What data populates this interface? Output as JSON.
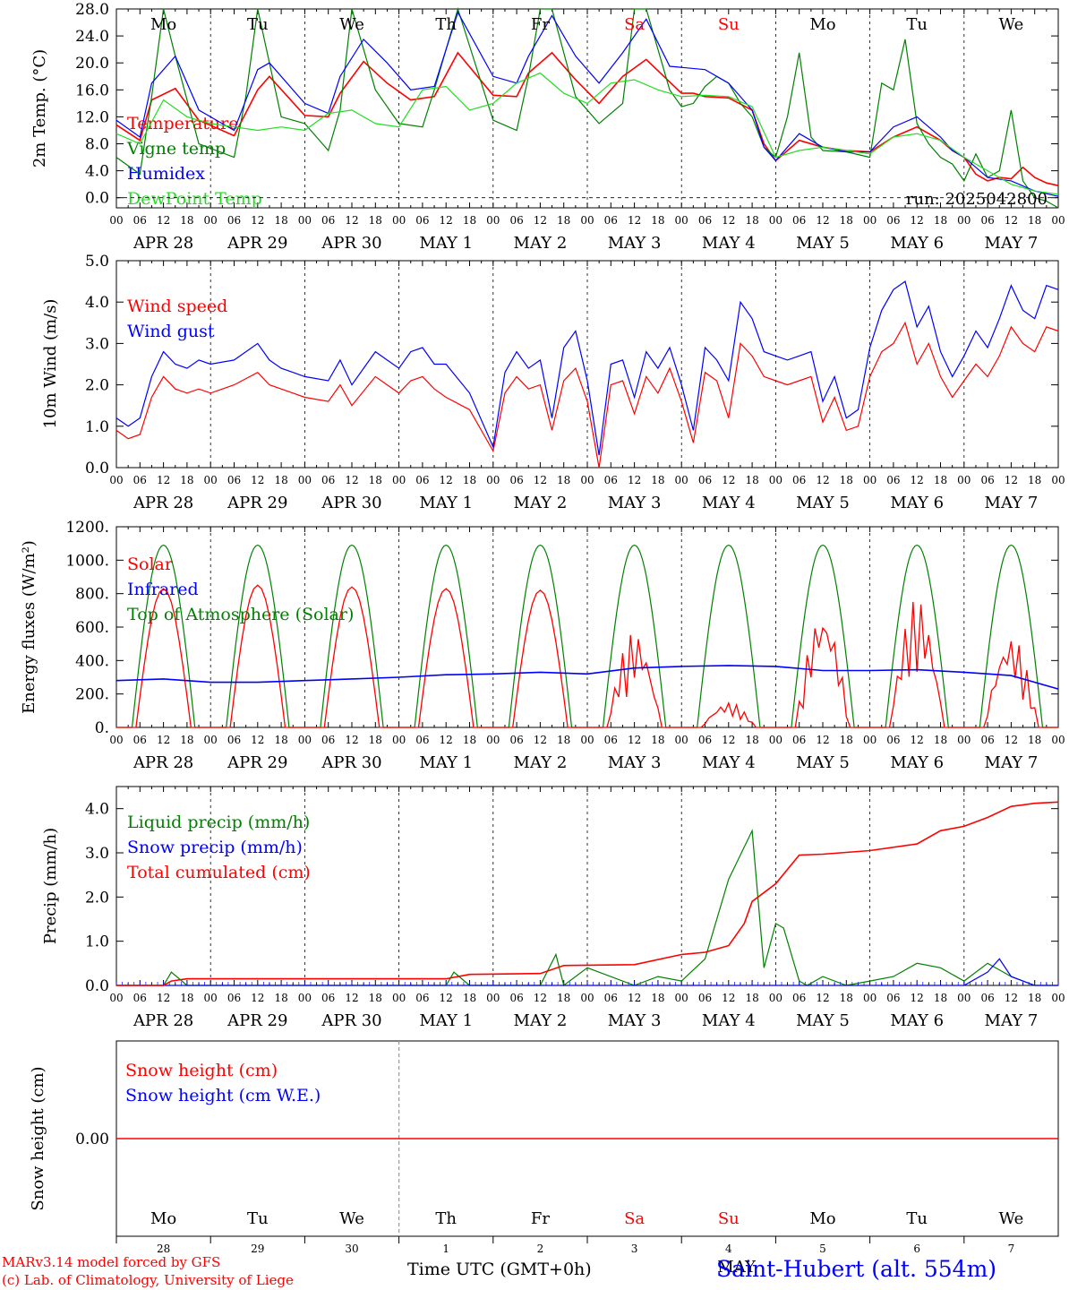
{
  "run_label": "run: 2025042800",
  "days": {
    "weekday_labels": [
      "Mo",
      "Tu",
      "We",
      "Th",
      "Fr",
      "Sa",
      "Su",
      "Mo",
      "Tu",
      "We"
    ],
    "weekend_flags": [
      false,
      false,
      false,
      false,
      false,
      true,
      true,
      false,
      false,
      false
    ],
    "date_labels": [
      "APR 28",
      "APR 29",
      "APR 30",
      "MAY  1",
      "MAY  2",
      "MAY  3",
      "MAY  4",
      "MAY  5",
      "MAY  6",
      "MAY  7"
    ],
    "hour_ticks": [
      "00",
      "06",
      "12",
      "18"
    ],
    "day_numbers": [
      "28",
      "29",
      "30",
      "1",
      "2",
      "3",
      "4",
      "5",
      "6",
      "7"
    ],
    "month_label": "MAY"
  },
  "colors": {
    "red": "#ff0000",
    "green": "#008000",
    "blue": "#0000ff",
    "lime": "#22dd22",
    "axis": "#000000",
    "weekend": "#ff0000"
  },
  "footer": {
    "model_line": "MARv3.14 model forced by GFS",
    "lab_line": "(c) Lab. of Climatology, University of Liege",
    "xlabel": "Time UTC (GMT+0h)",
    "station": "Saint-Hubert (alt. 554m)"
  },
  "chart_data": [
    {
      "type": "line",
      "ylabel": "2m Temp. (°C)",
      "ylim": [
        0,
        28
      ],
      "yticks": [
        "0.0",
        "4.0",
        "8.0",
        "12.0",
        "16.0",
        "20.0",
        "24.0",
        "28.0"
      ],
      "x_unit": "hours since APR 28 00 UTC",
      "series": [
        {
          "name": "Temperature",
          "color": "#ff0000",
          "x": [
            0,
            6,
            9,
            15,
            21,
            30,
            36,
            39,
            48,
            54,
            57,
            63,
            69,
            75,
            81,
            87,
            96,
            102,
            105,
            111,
            117,
            123,
            129,
            135,
            144,
            147,
            150,
            156,
            162,
            165,
            168,
            174,
            180,
            186,
            192,
            198,
            204,
            210,
            213,
            216,
            219,
            222,
            225,
            228,
            231,
            234,
            237,
            240,
            213
          ],
          "y": [
            10.8,
            8.5,
            14.5,
            16.2,
            11.5,
            9.2,
            16.0,
            18.0,
            12.2,
            12.0,
            15.5,
            20.2,
            17.0,
            14.5,
            15.0,
            21.5,
            15.2,
            15.0,
            18.5,
            21.5,
            17.5,
            14.0,
            18.0,
            20.5,
            15.5,
            15.5,
            15.0,
            14.8,
            13.0,
            8.0,
            5.5,
            8.5,
            7.5,
            7.0,
            6.8,
            9.0,
            10.5,
            8.5,
            7.0,
            6.0,
            3.5,
            2.5,
            3.0,
            2.8,
            4.5,
            3.0,
            2.2,
            1.8,
            7.0
          ]
        },
        {
          "name": "Vigne temp",
          "color": "#008000",
          "x": [
            0,
            6,
            9,
            12,
            15,
            21,
            30,
            33,
            36,
            42,
            48,
            54,
            57,
            60,
            66,
            72,
            78,
            81,
            87,
            96,
            102,
            105,
            108,
            111,
            117,
            123,
            129,
            132,
            135,
            141,
            144,
            147,
            150,
            153,
            156,
            159,
            162,
            165,
            168,
            171,
            174,
            177,
            180,
            186,
            192,
            195,
            198,
            201,
            204,
            207,
            210,
            213,
            216,
            219,
            222,
            225,
            228,
            231,
            234,
            237,
            240
          ],
          "y": [
            6.0,
            3.5,
            15.0,
            28.0,
            21.0,
            8.0,
            6.0,
            15.0,
            28.0,
            12.0,
            11.0,
            7.0,
            13.0,
            28.0,
            16.0,
            11.0,
            10.5,
            16.0,
            28.0,
            11.5,
            10.0,
            18.0,
            28.0,
            28.0,
            15.0,
            11.0,
            14.0,
            28.0,
            28.0,
            16.0,
            13.5,
            14.0,
            16.5,
            18.0,
            17.0,
            14.0,
            12.0,
            7.5,
            6.0,
            12.0,
            21.5,
            9.0,
            7.0,
            6.8,
            6.0,
            17.0,
            16.0,
            23.5,
            11.0,
            8.0,
            6.0,
            5.0,
            2.5,
            6.5,
            3.0,
            4.0,
            13.0,
            2.5,
            0.0,
            -0.5,
            -1.5
          ]
        },
        {
          "name": "Humidex",
          "color": "#0000ff",
          "x": [
            0,
            6,
            9,
            15,
            21,
            30,
            36,
            39,
            48,
            54,
            57,
            63,
            69,
            75,
            81,
            87,
            96,
            102,
            105,
            111,
            117,
            123,
            129,
            135,
            141,
            150,
            156,
            162,
            165,
            168,
            174,
            180,
            186,
            192,
            198,
            204,
            210,
            213,
            216,
            222,
            228,
            234,
            240
          ],
          "y": [
            11.5,
            9.0,
            17.0,
            21.0,
            13.0,
            10.0,
            19.0,
            20.0,
            14.0,
            12.5,
            18.0,
            23.5,
            20.0,
            16.0,
            16.5,
            27.5,
            18.0,
            17.0,
            21.0,
            27.0,
            21.0,
            17.0,
            21.5,
            26.5,
            19.5,
            19.0,
            17.0,
            13.0,
            7.5,
            5.5,
            9.5,
            7.5,
            6.8,
            6.8,
            10.5,
            12.0,
            9.0,
            7.0,
            6.0,
            3.0,
            2.5,
            1.0,
            0.2
          ]
        },
        {
          "name": "DewPoint Temp",
          "color": "#22dd22",
          "x": [
            0,
            6,
            12,
            18,
            24,
            30,
            36,
            42,
            48,
            54,
            60,
            66,
            72,
            78,
            84,
            90,
            96,
            102,
            108,
            114,
            120,
            126,
            132,
            138,
            144,
            150,
            156,
            162,
            168,
            174,
            180,
            186,
            192,
            198,
            204,
            210,
            216,
            222,
            228,
            234,
            240
          ],
          "y": [
            9.5,
            8.0,
            14.5,
            12.0,
            11.0,
            10.5,
            10.0,
            10.5,
            10.0,
            12.5,
            13.0,
            11.0,
            10.5,
            16.0,
            16.5,
            13.0,
            14.0,
            17.0,
            18.5,
            15.5,
            14.0,
            17.0,
            17.5,
            16.0,
            15.0,
            15.2,
            15.0,
            13.5,
            6.0,
            7.0,
            7.5,
            7.0,
            6.5,
            9.0,
            9.5,
            8.5,
            6.0,
            4.0,
            2.0,
            1.0,
            0.5
          ]
        }
      ],
      "annotations": [
        "run: 2025042800"
      ]
    },
    {
      "type": "line",
      "ylabel": "10m Wind (m/s)",
      "ylim": [
        0,
        5
      ],
      "yticks": [
        "0.0",
        "1.0",
        "2.0",
        "3.0",
        "4.0",
        "5.0"
      ],
      "series": [
        {
          "name": "Wind speed",
          "color": "#ff0000",
          "x": [
            0,
            3,
            6,
            9,
            12,
            15,
            18,
            21,
            24,
            30,
            36,
            39,
            42,
            45,
            48,
            54,
            57,
            60,
            66,
            69,
            72,
            75,
            78,
            81,
            84,
            90,
            96,
            99,
            102,
            105,
            108,
            111,
            114,
            117,
            120,
            123,
            126,
            129,
            132,
            135,
            138,
            141,
            144,
            147,
            150,
            153,
            156,
            159,
            162,
            165,
            168,
            171,
            174,
            177,
            180,
            183,
            186,
            189,
            192,
            195,
            198,
            201,
            204,
            207,
            210,
            213,
            216,
            219,
            222,
            225,
            228,
            231,
            234,
            237,
            240
          ],
          "y": [
            0.9,
            0.7,
            0.8,
            1.7,
            2.2,
            1.9,
            1.8,
            1.9,
            1.8,
            2.0,
            2.3,
            2.0,
            1.9,
            1.8,
            1.7,
            1.6,
            2.0,
            1.5,
            2.2,
            2.0,
            1.8,
            2.1,
            2.2,
            1.9,
            1.7,
            1.4,
            0.4,
            1.8,
            2.2,
            1.9,
            2.0,
            0.9,
            2.1,
            2.4,
            1.6,
            0.0,
            2.0,
            2.1,
            1.3,
            2.2,
            1.8,
            2.4,
            1.6,
            0.6,
            2.3,
            2.1,
            1.2,
            3.0,
            2.7,
            2.2,
            2.1,
            2.0,
            2.1,
            2.2,
            1.1,
            1.7,
            0.9,
            1.0,
            2.2,
            2.8,
            3.0,
            3.5,
            2.5,
            3.0,
            2.2,
            1.7,
            2.1,
            2.5,
            2.2,
            2.7,
            3.4,
            3.0,
            2.8,
            3.4,
            3.3
          ]
        },
        {
          "name": "Wind gust",
          "color": "#0000ff",
          "x": [
            0,
            3,
            6,
            9,
            12,
            15,
            18,
            21,
            24,
            30,
            36,
            39,
            42,
            45,
            48,
            54,
            57,
            60,
            66,
            69,
            72,
            75,
            78,
            81,
            84,
            90,
            96,
            99,
            102,
            105,
            108,
            111,
            114,
            117,
            120,
            123,
            126,
            129,
            132,
            135,
            138,
            141,
            144,
            147,
            150,
            153,
            156,
            159,
            162,
            165,
            168,
            171,
            174,
            177,
            180,
            183,
            186,
            189,
            192,
            195,
            198,
            201,
            204,
            207,
            210,
            213,
            216,
            219,
            222,
            225,
            228,
            231,
            234,
            237,
            240
          ],
          "y": [
            1.2,
            1.0,
            1.2,
            2.2,
            2.8,
            2.5,
            2.4,
            2.6,
            2.5,
            2.6,
            3.0,
            2.6,
            2.4,
            2.3,
            2.2,
            2.1,
            2.6,
            2.0,
            2.8,
            2.6,
            2.4,
            2.8,
            2.9,
            2.5,
            2.5,
            1.8,
            0.5,
            2.3,
            2.8,
            2.4,
            2.6,
            1.2,
            2.9,
            3.3,
            2.1,
            0.3,
            2.5,
            2.6,
            1.7,
            2.8,
            2.4,
            2.9,
            2.0,
            0.9,
            2.9,
            2.6,
            2.1,
            4.0,
            3.6,
            2.8,
            2.7,
            2.6,
            2.7,
            2.8,
            1.6,
            2.2,
            1.2,
            1.4,
            2.9,
            3.8,
            4.3,
            4.5,
            3.4,
            3.9,
            2.8,
            2.2,
            2.7,
            3.3,
            2.9,
            3.6,
            4.4,
            3.8,
            3.6,
            4.4,
            4.3
          ]
        }
      ]
    },
    {
      "type": "line",
      "ylabel": "Energy fluxes (W/m²)",
      "ylim": [
        0,
        1200
      ],
      "yticks": [
        "0.",
        "200.",
        "400.",
        "600.",
        "800.",
        "1000.",
        "1200."
      ],
      "series": [
        {
          "name": "Solar",
          "color": "#ff0000",
          "peaks_hour_12": [
            830,
            850,
            840,
            830,
            820,
            570,
            150,
            700,
            770,
            550
          ]
        },
        {
          "name": "Infrared",
          "color": "#0000ff",
          "x": [
            0,
            12,
            24,
            36,
            48,
            60,
            72,
            84,
            96,
            108,
            120,
            132,
            144,
            156,
            168,
            180,
            192,
            204,
            216,
            228,
            240
          ],
          "y": [
            280,
            290,
            270,
            270,
            280,
            290,
            300,
            315,
            320,
            330,
            320,
            355,
            365,
            370,
            365,
            340,
            340,
            345,
            330,
            310,
            230
          ]
        },
        {
          "name": "Top of Atmosphere (Solar)",
          "color": "#008000",
          "daily_peak": 1090
        }
      ]
    },
    {
      "type": "line",
      "ylabel": "Precip (mm/h)",
      "ylim": [
        0,
        4.5
      ],
      "yticks": [
        "0.0",
        "1.0",
        "2.0",
        "3.0",
        "4.0"
      ],
      "series": [
        {
          "name": "Liquid precip (mm/h)",
          "color": "#008000",
          "x": [
            0,
            12,
            14,
            18,
            24,
            84,
            86,
            90,
            96,
            108,
            112,
            114,
            120,
            132,
            138,
            144,
            150,
            156,
            162,
            165,
            168,
            170,
            174,
            176,
            180,
            186,
            192,
            198,
            204,
            210,
            216,
            222,
            228,
            234,
            240
          ],
          "y": [
            0,
            0,
            0.3,
            0,
            0,
            0,
            0.3,
            0,
            0,
            0,
            0.7,
            0,
            0.4,
            0,
            0.2,
            0.1,
            0.6,
            2.4,
            3.5,
            0.4,
            1.4,
            1.3,
            0.1,
            0,
            0.2,
            0,
            0.1,
            0.2,
            0.5,
            0.4,
            0.1,
            0.5,
            0.2,
            0,
            0
          ]
        },
        {
          "name": "Snow precip (mm/h)",
          "color": "#0000ff",
          "x": [
            0,
            216,
            222,
            225,
            228,
            234,
            240
          ],
          "y": [
            0,
            0,
            0.3,
            0.6,
            0.2,
            0,
            0
          ]
        },
        {
          "name": "Total cumulated (cm)",
          "color": "#ff0000",
          "x": [
            0,
            12,
            14,
            18,
            84,
            90,
            108,
            114,
            132,
            144,
            150,
            156,
            160,
            162,
            168,
            174,
            180,
            192,
            204,
            210,
            216,
            222,
            228,
            234,
            240
          ],
          "y": [
            0,
            0,
            0.1,
            0.15,
            0.15,
            0.25,
            0.27,
            0.45,
            0.47,
            0.7,
            0.75,
            0.9,
            1.4,
            1.9,
            2.3,
            2.95,
            2.97,
            3.05,
            3.2,
            3.5,
            3.6,
            3.8,
            4.05,
            4.12,
            4.15
          ]
        }
      ]
    },
    {
      "type": "line",
      "ylabel": "Snow height (cm)",
      "yticks": [
        "0.00"
      ],
      "series": [
        {
          "name": "Snow height (cm)",
          "color": "#ff0000",
          "x": [
            0,
            240
          ],
          "y": [
            0,
            0
          ]
        },
        {
          "name": "Snow height (cm W.E.)",
          "color": "#0000ff",
          "x": [
            0,
            240
          ],
          "y": [
            0,
            0
          ]
        }
      ]
    }
  ]
}
